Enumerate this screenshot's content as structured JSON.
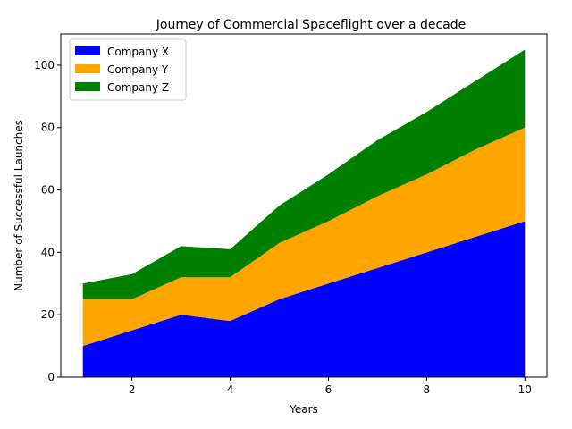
{
  "chart_data": {
    "type": "area",
    "stacked": true,
    "title": "Journey of Commercial Spaceflight over a decade",
    "xlabel": "Years",
    "ylabel": "Number of Successful Launches",
    "x": [
      1,
      2,
      3,
      4,
      5,
      6,
      7,
      8,
      9,
      10
    ],
    "xticks": [
      2,
      4,
      6,
      8,
      10
    ],
    "yticks": [
      0,
      20,
      40,
      60,
      80,
      100
    ],
    "xlim": [
      0.55,
      10.45
    ],
    "ylim": [
      0,
      110
    ],
    "grid": false,
    "legend_position": "upper-left",
    "series": [
      {
        "name": "Company X",
        "color": "#0000ff",
        "values": [
          10,
          15,
          20,
          18,
          25,
          30,
          35,
          40,
          45,
          50
        ]
      },
      {
        "name": "Company Y",
        "color": "#ffa500",
        "values": [
          15,
          10,
          12,
          14,
          18,
          20,
          23,
          25,
          28,
          30
        ]
      },
      {
        "name": "Company Z",
        "color": "#008000",
        "values": [
          5,
          8,
          10,
          9,
          12,
          15,
          18,
          20,
          22,
          25
        ]
      }
    ]
  }
}
